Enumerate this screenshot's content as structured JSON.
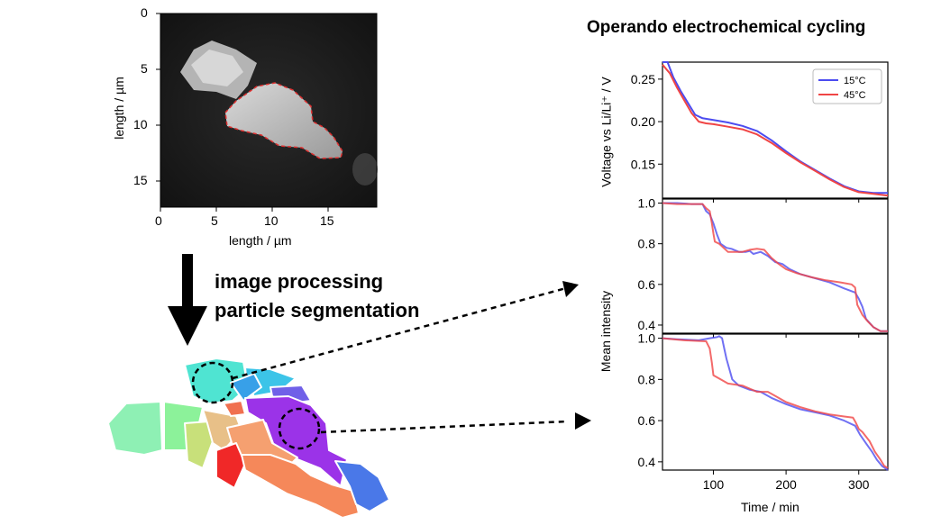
{
  "figure": {
    "title": "Operando electrochemical cycling",
    "steps": [
      "image processing",
      "particle segmentation"
    ],
    "image_panel": {
      "xlabel": "length / µm",
      "ylabel": "length / µm",
      "xticks": [
        "0",
        "5",
        "10",
        "15"
      ],
      "yticks": [
        "0",
        "5",
        "10",
        "15"
      ]
    }
  },
  "chart_data": [
    {
      "type": "line",
      "panel": "voltage",
      "ylabel": "Voltage vs Li/Li⁺ / V",
      "xlim": [
        30,
        340
      ],
      "ylim": [
        0.11,
        0.27
      ],
      "yticks": [
        "0.15",
        "0.20",
        "0.25"
      ],
      "legend": {
        "position": "top-right"
      },
      "series": [
        {
          "name": "15°C",
          "color": "#4c4cf0",
          "points": [
            [
              30,
              0.27
            ],
            [
              37,
              0.27
            ],
            [
              45,
              0.252
            ],
            [
              55,
              0.236
            ],
            [
              65,
              0.222
            ],
            [
              75,
              0.208
            ],
            [
              85,
              0.204
            ],
            [
              100,
              0.202
            ],
            [
              120,
              0.199
            ],
            [
              140,
              0.195
            ],
            [
              160,
              0.189
            ],
            [
              180,
              0.178
            ],
            [
              200,
              0.165
            ],
            [
              220,
              0.153
            ],
            [
              240,
              0.143
            ],
            [
              260,
              0.133
            ],
            [
              280,
              0.124
            ],
            [
              300,
              0.118
            ],
            [
              320,
              0.116
            ],
            [
              340,
              0.116
            ]
          ]
        },
        {
          "name": "45°C",
          "color": "#f04545",
          "points": [
            [
              30,
              0.267
            ],
            [
              40,
              0.257
            ],
            [
              50,
              0.24
            ],
            [
              60,
              0.225
            ],
            [
              70,
              0.21
            ],
            [
              80,
              0.2
            ],
            [
              90,
              0.198
            ],
            [
              100,
              0.197
            ],
            [
              120,
              0.194
            ],
            [
              140,
              0.191
            ],
            [
              160,
              0.185
            ],
            [
              180,
              0.175
            ],
            [
              200,
              0.163
            ],
            [
              220,
              0.152
            ],
            [
              240,
              0.142
            ],
            [
              260,
              0.132
            ],
            [
              280,
              0.123
            ],
            [
              300,
              0.117
            ],
            [
              320,
              0.115
            ],
            [
              340,
              0.113
            ]
          ]
        }
      ]
    },
    {
      "type": "line",
      "panel": "intensity-1",
      "ylabel": "Mean intensity",
      "xlim": [
        30,
        340
      ],
      "ylim": [
        0.36,
        1.02
      ],
      "yticks": [
        "0.4",
        "0.6",
        "0.8",
        "1.0"
      ],
      "series": [
        {
          "name": "15°C",
          "color": "#4c4cf0",
          "points": [
            [
              30,
              1.0
            ],
            [
              50,
              1.0
            ],
            [
              70,
              0.995
            ],
            [
              85,
              0.995
            ],
            [
              90,
              0.96
            ],
            [
              95,
              0.945
            ],
            [
              100,
              0.9
            ],
            [
              105,
              0.845
            ],
            [
              110,
              0.8
            ],
            [
              118,
              0.78
            ],
            [
              125,
              0.775
            ],
            [
              135,
              0.76
            ],
            [
              145,
              0.76
            ],
            [
              150,
              0.765
            ],
            [
              155,
              0.75
            ],
            [
              165,
              0.76
            ],
            [
              175,
              0.74
            ],
            [
              185,
              0.71
            ],
            [
              195,
              0.7
            ],
            [
              205,
              0.675
            ],
            [
              220,
              0.65
            ],
            [
              240,
              0.63
            ],
            [
              260,
              0.61
            ],
            [
              280,
              0.58
            ],
            [
              295,
              0.56
            ],
            [
              300,
              0.53
            ],
            [
              305,
              0.49
            ],
            [
              310,
              0.43
            ],
            [
              320,
              0.39
            ],
            [
              330,
              0.37
            ],
            [
              340,
              0.37
            ]
          ]
        },
        {
          "name": "45°C",
          "color": "#f04545",
          "points": [
            [
              30,
              1.0
            ],
            [
              50,
              0.995
            ],
            [
              70,
              0.995
            ],
            [
              85,
              0.995
            ],
            [
              90,
              0.975
            ],
            [
              95,
              0.96
            ],
            [
              98,
              0.9
            ],
            [
              100,
              0.85
            ],
            [
              102,
              0.81
            ],
            [
              108,
              0.8
            ],
            [
              120,
              0.76
            ],
            [
              140,
              0.76
            ],
            [
              150,
              0.77
            ],
            [
              160,
              0.775
            ],
            [
              170,
              0.77
            ],
            [
              180,
              0.73
            ],
            [
              190,
              0.7
            ],
            [
              200,
              0.675
            ],
            [
              215,
              0.655
            ],
            [
              235,
              0.635
            ],
            [
              255,
              0.62
            ],
            [
              275,
              0.61
            ],
            [
              290,
              0.6
            ],
            [
              295,
              0.585
            ],
            [
              298,
              0.5
            ],
            [
              305,
              0.45
            ],
            [
              312,
              0.42
            ],
            [
              320,
              0.39
            ],
            [
              330,
              0.37
            ],
            [
              340,
              0.37
            ]
          ]
        }
      ]
    },
    {
      "type": "line",
      "panel": "intensity-2",
      "xlabel": "Time / min",
      "xlim": [
        30,
        340
      ],
      "ylim": [
        0.36,
        1.02
      ],
      "xticks": [
        "100",
        "200",
        "300"
      ],
      "yticks": [
        "0.4",
        "0.6",
        "0.8",
        "1.0"
      ],
      "series": [
        {
          "name": "15°C",
          "color": "#4c4cf0",
          "points": [
            [
              30,
              1.0
            ],
            [
              50,
              0.995
            ],
            [
              80,
              0.99
            ],
            [
              95,
              1.0
            ],
            [
              105,
              1.005
            ],
            [
              108,
              1.01
            ],
            [
              112,
              1.0
            ],
            [
              115,
              0.95
            ],
            [
              118,
              0.9
            ],
            [
              122,
              0.85
            ],
            [
              126,
              0.8
            ],
            [
              135,
              0.77
            ],
            [
              150,
              0.75
            ],
            [
              165,
              0.74
            ],
            [
              180,
              0.71
            ],
            [
              200,
              0.68
            ],
            [
              220,
              0.655
            ],
            [
              240,
              0.64
            ],
            [
              260,
              0.625
            ],
            [
              280,
              0.6
            ],
            [
              295,
              0.575
            ],
            [
              302,
              0.53
            ],
            [
              310,
              0.49
            ],
            [
              318,
              0.45
            ],
            [
              325,
              0.41
            ],
            [
              332,
              0.38
            ],
            [
              340,
              0.36
            ]
          ]
        },
        {
          "name": "45°C",
          "color": "#f04545",
          "points": [
            [
              30,
              1.0
            ],
            [
              60,
              0.99
            ],
            [
              90,
              0.985
            ],
            [
              95,
              0.95
            ],
            [
              98,
              0.88
            ],
            [
              100,
              0.82
            ],
            [
              110,
              0.8
            ],
            [
              120,
              0.78
            ],
            [
              140,
              0.77
            ],
            [
              160,
              0.74
            ],
            [
              175,
              0.74
            ],
            [
              185,
              0.72
            ],
            [
              200,
              0.69
            ],
            [
              220,
              0.665
            ],
            [
              240,
              0.645
            ],
            [
              260,
              0.63
            ],
            [
              280,
              0.62
            ],
            [
              292,
              0.615
            ],
            [
              296,
              0.59
            ],
            [
              300,
              0.56
            ],
            [
              305,
              0.545
            ],
            [
              315,
              0.5
            ],
            [
              322,
              0.45
            ],
            [
              330,
              0.41
            ],
            [
              335,
              0.38
            ],
            [
              340,
              0.37
            ]
          ]
        }
      ]
    }
  ],
  "colors": {
    "series_15": "#4c4cf0",
    "series_45": "#f04545",
    "outline": "#e03030"
  }
}
